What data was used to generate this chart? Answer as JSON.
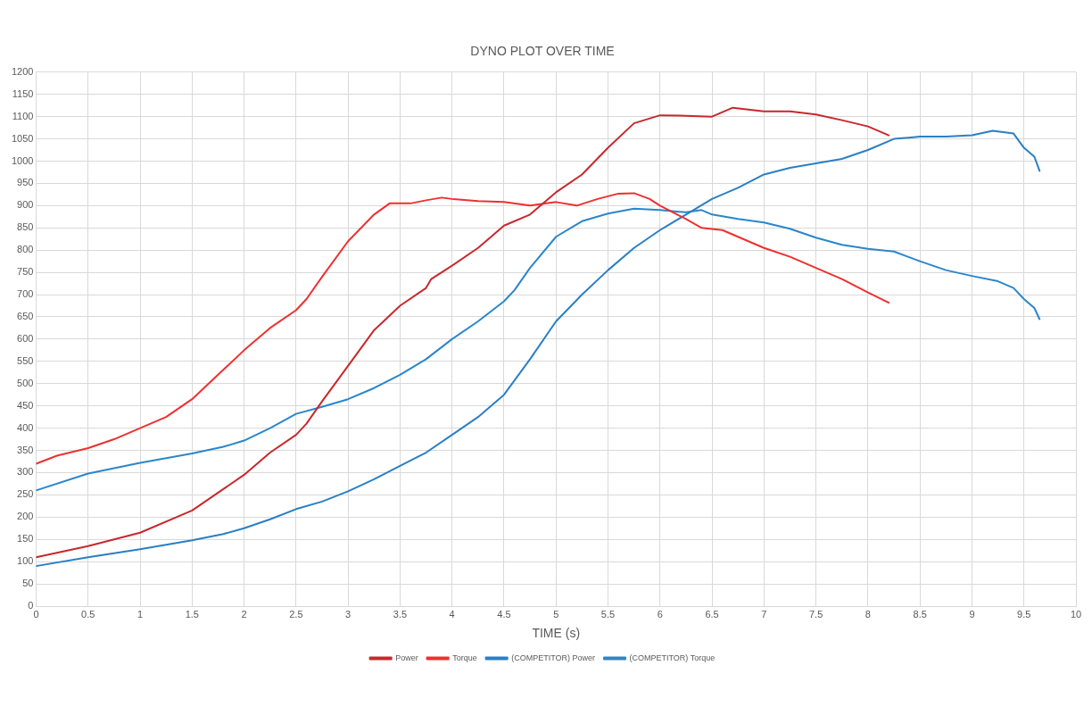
{
  "chart_data": {
    "type": "line",
    "title": "DYNO PLOT OVER TIME",
    "xlabel": "TIME (s)",
    "xlim": [
      0,
      10
    ],
    "xticks": [
      0,
      0.5,
      1,
      1.5,
      2,
      2.5,
      3,
      3.5,
      4,
      4.5,
      5,
      5.5,
      6,
      6.5,
      7,
      7.5,
      8,
      8.5,
      9,
      9.5,
      10
    ],
    "ylim": [
      0,
      1200
    ],
    "yticks": [
      0,
      50,
      100,
      150,
      200,
      250,
      300,
      350,
      400,
      450,
      500,
      550,
      600,
      650,
      700,
      750,
      800,
      850,
      900,
      950,
      1000,
      1050,
      1100,
      1150,
      1200
    ],
    "grid": true,
    "legend": "bottom",
    "marker": "none",
    "line_style": "solid",
    "series": [
      {
        "name": "Power",
        "color": "#c8282d",
        "x": [
          0,
          0.5,
          1,
          1.5,
          2,
          2.25,
          2.5,
          2.6,
          2.75,
          3,
          3.25,
          3.5,
          3.75,
          3.8,
          4,
          4.25,
          4.5,
          4.75,
          5,
          5.25,
          5.5,
          5.75,
          6,
          6.25,
          6.5,
          6.6,
          6.7,
          7,
          7.25,
          7.5,
          7.75,
          8,
          8.2
        ],
        "values": [
          110,
          135,
          165,
          215,
          295,
          345,
          385,
          410,
          460,
          540,
          620,
          675,
          715,
          735,
          765,
          805,
          855,
          880,
          930,
          970,
          1030,
          1085,
          1103,
          1102,
          1100,
          1110,
          1120,
          1112,
          1112,
          1105,
          1092,
          1078,
          1058
        ]
      },
      {
        "name": "Torque",
        "color": "#ee3030",
        "x": [
          0,
          0.2,
          0.5,
          0.75,
          1,
          1.25,
          1.5,
          1.75,
          2,
          2.25,
          2.5,
          2.6,
          2.75,
          3,
          3.25,
          3.4,
          3.6,
          3.75,
          3.9,
          4,
          4.25,
          4.5,
          4.75,
          5,
          5.2,
          5.4,
          5.6,
          5.75,
          5.9,
          6,
          6.25,
          6.4,
          6.6,
          6.75,
          7,
          7.25,
          7.5,
          7.75,
          8,
          8.2
        ],
        "values": [
          320,
          338,
          355,
          375,
          400,
          425,
          465,
          520,
          575,
          625,
          665,
          690,
          740,
          820,
          880,
          905,
          905,
          912,
          918,
          915,
          910,
          908,
          900,
          908,
          900,
          915,
          927,
          928,
          915,
          900,
          870,
          850,
          845,
          830,
          805,
          785,
          760,
          735,
          705,
          682
        ]
      },
      {
        "name": "(COMPETITOR) Power",
        "color": "#2a7fc4",
        "x": [
          0,
          0.5,
          1,
          1.5,
          1.8,
          2,
          2.25,
          2.5,
          2.75,
          3,
          3.25,
          3.5,
          3.75,
          4,
          4.25,
          4.5,
          4.75,
          5,
          5.25,
          5.5,
          5.75,
          6,
          6.25,
          6.5,
          6.75,
          7,
          7.25,
          7.5,
          7.75,
          8,
          8.25,
          8.5,
          8.75,
          9,
          9.2,
          9.4,
          9.5,
          9.6,
          9.65
        ],
        "values": [
          90,
          110,
          128,
          148,
          162,
          175,
          195,
          218,
          235,
          258,
          285,
          315,
          345,
          385,
          425,
          475,
          555,
          640,
          700,
          755,
          805,
          845,
          880,
          915,
          940,
          970,
          985,
          995,
          1005,
          1025,
          1050,
          1055,
          1055,
          1058,
          1068,
          1062,
          1030,
          1010,
          978
        ]
      },
      {
        "name": "(COMPETITOR) Torque",
        "color": "#2a86cc",
        "x": [
          0,
          0.5,
          1,
          1.5,
          1.8,
          2,
          2.25,
          2.5,
          2.75,
          3,
          3.25,
          3.5,
          3.75,
          4,
          4.25,
          4.5,
          4.6,
          4.75,
          5,
          5.25,
          5.5,
          5.75,
          6,
          6.25,
          6.4,
          6.5,
          6.75,
          7,
          7.25,
          7.5,
          7.75,
          8,
          8.25,
          8.5,
          8.75,
          9,
          9.25,
          9.4,
          9.5,
          9.6,
          9.65
        ],
        "values": [
          260,
          298,
          322,
          343,
          358,
          372,
          400,
          432,
          448,
          465,
          490,
          520,
          555,
          600,
          640,
          685,
          710,
          760,
          830,
          865,
          882,
          893,
          890,
          885,
          890,
          880,
          870,
          862,
          848,
          828,
          812,
          803,
          797,
          775,
          755,
          742,
          730,
          715,
          690,
          670,
          645
        ]
      }
    ]
  }
}
